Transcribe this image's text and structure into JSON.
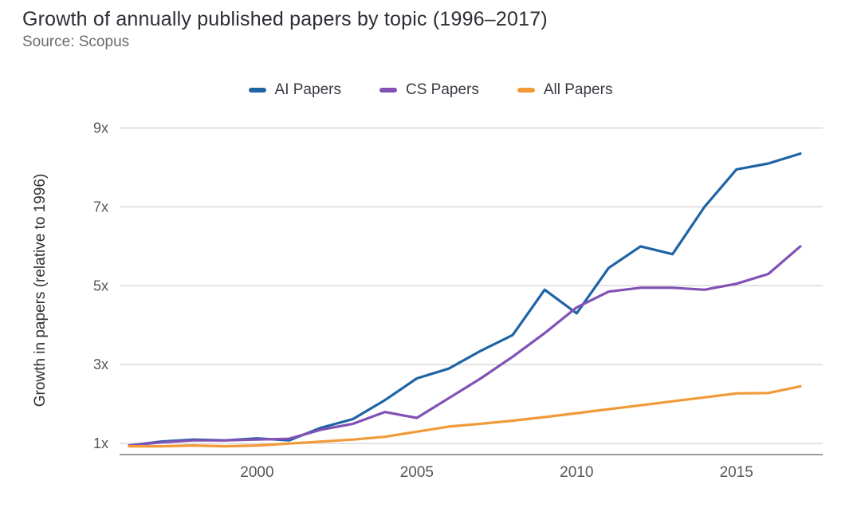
{
  "chart_data": {
    "type": "line",
    "title": "Growth of annually published papers by topic (1996–2017)",
    "source": "Source: Scopus",
    "xlabel": "",
    "ylabel": "Growth in papers (relative to 1996)",
    "legend_position": "top",
    "grid": "horizontal",
    "grid_color": "#d9d9d9",
    "axis_color": "#9b9b9b",
    "tick_color": "#55555c",
    "ylabel_color": "#2f2f36",
    "xlim": [
      1995.7,
      2017.7
    ],
    "ylim": [
      0.72,
      9.05
    ],
    "x": [
      1996,
      1997,
      1998,
      1999,
      2000,
      2001,
      2002,
      2003,
      2004,
      2005,
      2006,
      2007,
      2008,
      2009,
      2010,
      2011,
      2012,
      2013,
      2014,
      2015,
      2016,
      2017
    ],
    "x_ticks": [
      {
        "value": 2000,
        "label": "2000"
      },
      {
        "value": 2005,
        "label": "2005"
      },
      {
        "value": 2010,
        "label": "2010"
      },
      {
        "value": 2015,
        "label": "2015"
      }
    ],
    "y_ticks": [
      {
        "value": 1,
        "label": "1x"
      },
      {
        "value": 3,
        "label": "3x"
      },
      {
        "value": 5,
        "label": "5x"
      },
      {
        "value": 7,
        "label": "7x"
      },
      {
        "value": 9,
        "label": "9x"
      }
    ],
    "series": [
      {
        "name": "AI Papers",
        "color": "#1f64a5",
        "values": [
          0.95,
          1.05,
          1.1,
          1.08,
          1.13,
          1.08,
          1.4,
          1.62,
          2.1,
          2.65,
          2.9,
          3.35,
          3.75,
          4.9,
          4.3,
          5.45,
          6.0,
          5.8,
          7.0,
          7.95,
          8.1,
          8.35
        ]
      },
      {
        "name": "CS Papers",
        "color": "#8151b5",
        "values": [
          0.95,
          1.03,
          1.08,
          1.08,
          1.1,
          1.12,
          1.35,
          1.5,
          1.8,
          1.65,
          2.15,
          2.65,
          3.2,
          3.8,
          4.45,
          4.85,
          4.95,
          4.95,
          4.9,
          5.05,
          5.3,
          6.0
        ]
      },
      {
        "name": "All Papers",
        "color": "#f09a38",
        "values": [
          0.93,
          0.93,
          0.95,
          0.93,
          0.95,
          1.0,
          1.05,
          1.1,
          1.17,
          1.3,
          1.43,
          1.5,
          1.58,
          1.67,
          1.77,
          1.87,
          1.97,
          2.07,
          2.17,
          2.27,
          2.28,
          2.45
        ]
      }
    ]
  }
}
